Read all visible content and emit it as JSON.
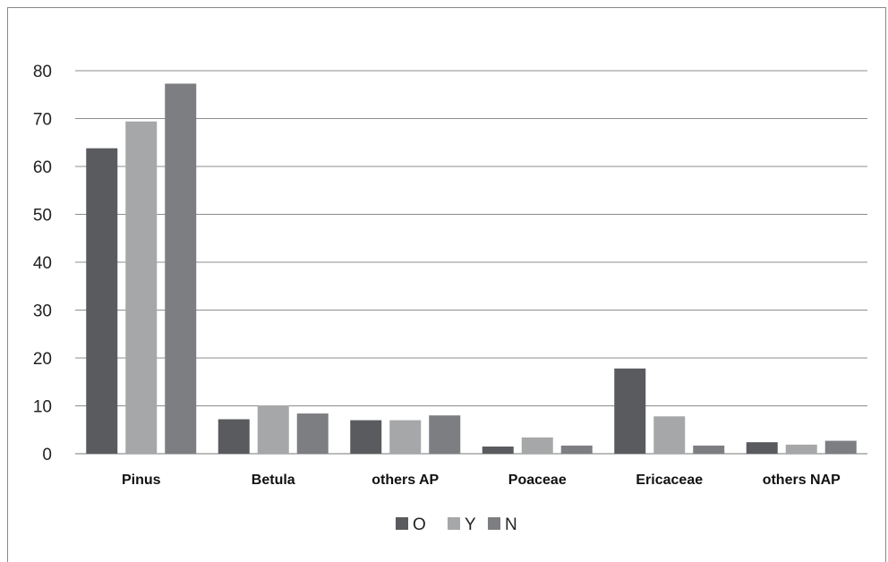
{
  "chart_data": {
    "type": "bar",
    "categories": [
      "Pinus",
      "Betula",
      "others AP",
      "Poaceae",
      "Ericaceae",
      "others NAP"
    ],
    "series": [
      {
        "name": "O",
        "color": "#5a5b5f",
        "values": [
          63.8,
          7.2,
          7.0,
          1.5,
          17.8,
          2.4
        ]
      },
      {
        "name": "Y",
        "color": "#a6a7a9",
        "values": [
          69.4,
          10.1,
          7.0,
          3.4,
          7.8,
          1.9
        ]
      },
      {
        "name": "N",
        "color": "#7d7e82",
        "values": [
          77.3,
          8.4,
          8.0,
          1.7,
          1.7,
          2.7
        ]
      }
    ],
    "ylim": [
      0,
      80
    ],
    "yticks": [
      0,
      10,
      20,
      30,
      40,
      50,
      60,
      70,
      80
    ],
    "grid": true,
    "legend_position": "bottom"
  }
}
